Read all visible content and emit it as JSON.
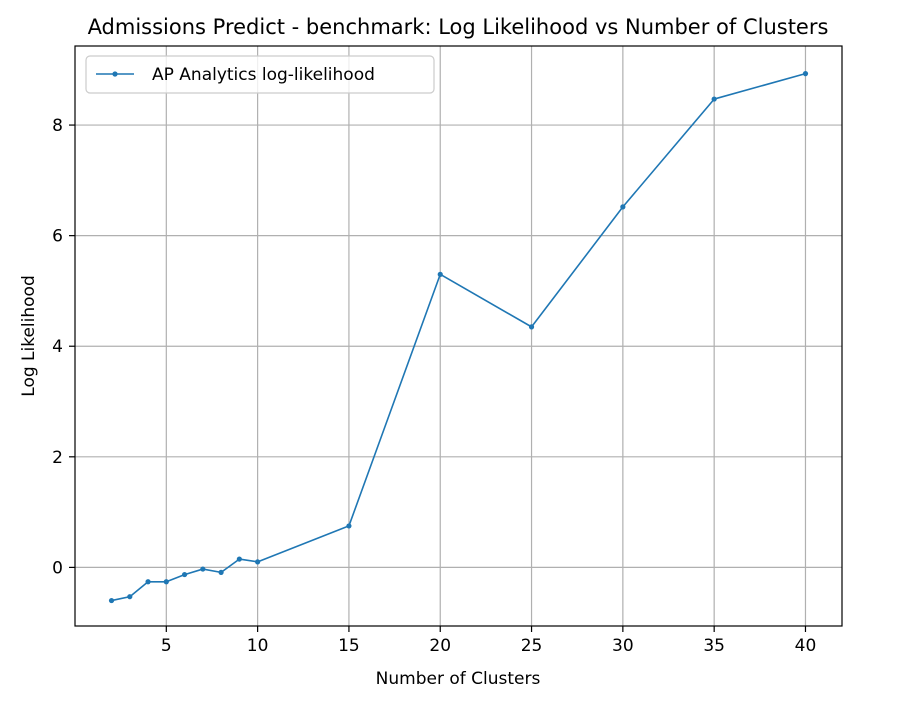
{
  "chart_data": {
    "type": "line",
    "title": "Admissions Predict - benchmark: Log Likelihood vs Number of Clusters",
    "xlabel": "Number of Clusters",
    "ylabel": "Log Likelihood",
    "xlim": [
      0,
      42
    ],
    "ylim": [
      -1.06,
      9.43
    ],
    "xticks": [
      5,
      10,
      15,
      20,
      25,
      30,
      35,
      40
    ],
    "yticks": [
      0,
      2,
      4,
      6,
      8
    ],
    "grid": true,
    "legend_position": "top-left",
    "series": [
      {
        "name": "AP Analytics log-likelihood",
        "color": "#1f77b4",
        "marker": "circle",
        "x": [
          2,
          3,
          4,
          5,
          6,
          7,
          8,
          9,
          10,
          15,
          20,
          25,
          30,
          35,
          40
        ],
        "y": [
          -0.6,
          -0.53,
          -0.26,
          -0.26,
          -0.13,
          -0.03,
          -0.09,
          0.15,
          0.1,
          0.75,
          5.3,
          4.35,
          6.52,
          8.47,
          8.93
        ]
      }
    ]
  }
}
